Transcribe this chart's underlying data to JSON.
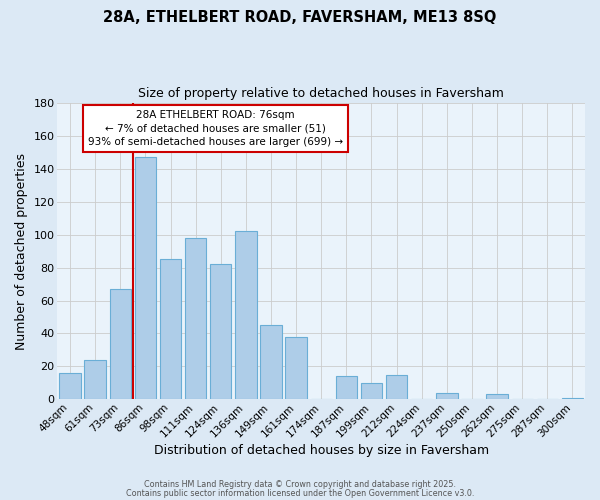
{
  "title": "28A, ETHELBERT ROAD, FAVERSHAM, ME13 8SQ",
  "subtitle": "Size of property relative to detached houses in Faversham",
  "xlabel": "Distribution of detached houses by size in Faversham",
  "ylabel": "Number of detached properties",
  "bar_labels": [
    "48sqm",
    "61sqm",
    "73sqm",
    "86sqm",
    "98sqm",
    "111sqm",
    "124sqm",
    "136sqm",
    "149sqm",
    "161sqm",
    "174sqm",
    "187sqm",
    "199sqm",
    "212sqm",
    "224sqm",
    "237sqm",
    "250sqm",
    "262sqm",
    "275sqm",
    "287sqm",
    "300sqm"
  ],
  "bar_values": [
    16,
    24,
    67,
    147,
    85,
    98,
    82,
    102,
    45,
    38,
    0,
    14,
    10,
    15,
    0,
    4,
    0,
    3,
    0,
    0,
    1
  ],
  "bar_color": "#aecde8",
  "bar_edge_color": "#6aaed6",
  "grid_color": "#cccccc",
  "plot_bg_color": "#eaf3fb",
  "fig_bg_color": "#dce9f5",
  "ylim": [
    0,
    180
  ],
  "yticks": [
    0,
    20,
    40,
    60,
    80,
    100,
    120,
    140,
    160,
    180
  ],
  "vline_color": "#cc0000",
  "annotation_title": "28A ETHELBERT ROAD: 76sqm",
  "annotation_line1": "← 7% of detached houses are smaller (51)",
  "annotation_line2": "93% of semi-detached houses are larger (699) →",
  "footer1": "Contains HM Land Registry data © Crown copyright and database right 2025.",
  "footer2": "Contains public sector information licensed under the Open Government Licence v3.0."
}
